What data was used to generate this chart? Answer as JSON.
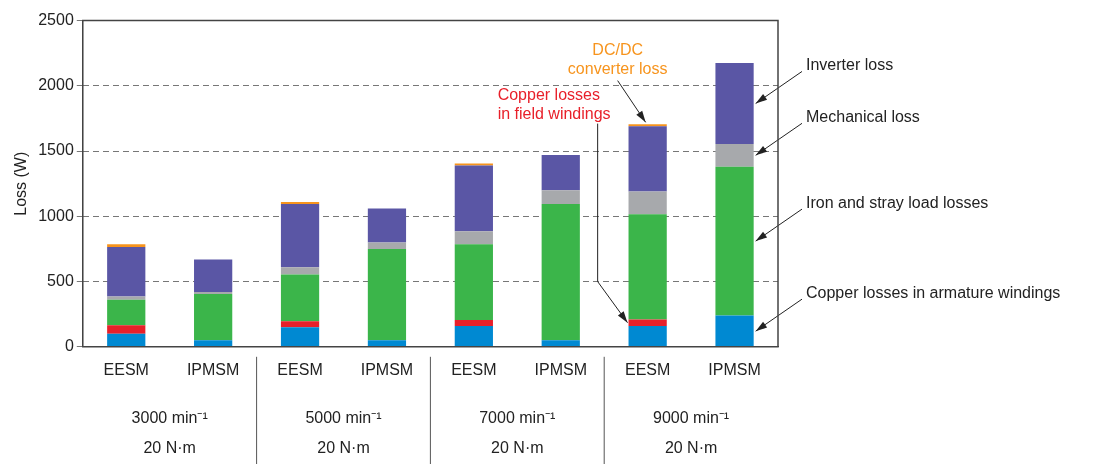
{
  "chart_data": {
    "type": "bar",
    "stacked": true,
    "ylabel": "Loss (W)",
    "categories": [
      "EESM",
      "IPMSM",
      "EESM",
      "IPMSM",
      "EESM",
      "IPMSM",
      "EESM",
      "IPMSM"
    ],
    "series": [
      {
        "name": "Copper losses in armature windings",
        "color": "#0089d2",
        "values": [
          100,
          50,
          150,
          50,
          160,
          50,
          160,
          240
        ]
      },
      {
        "name": "Copper losses\nin field windings",
        "color": "#e8202a",
        "values": [
          65,
          0,
          45,
          0,
          45,
          0,
          50,
          0
        ]
      },
      {
        "name": "Iron and stray load losses",
        "color": "#3bb54a",
        "values": [
          195,
          355,
          360,
          700,
          580,
          1045,
          805,
          1140
        ]
      },
      {
        "name": "Mechanical loss",
        "color": "#a7a9ac",
        "values": [
          25,
          15,
          55,
          50,
          100,
          105,
          175,
          175
        ]
      },
      {
        "name": "Inverter loss",
        "color": "#5a56a5",
        "values": [
          380,
          250,
          485,
          260,
          505,
          270,
          500,
          620
        ]
      },
      {
        "name": "DC/DC\nconverter loss",
        "color": "#f7941d",
        "values": [
          20,
          0,
          15,
          0,
          15,
          0,
          15,
          0
        ]
      }
    ],
    "ylim": [
      0,
      2500
    ],
    "yticks": [
      0,
      500,
      1000,
      1500,
      2000,
      2500
    ],
    "grid": "y",
    "legend": false,
    "annotations": [
      "3000 min⁻¹\n20 N·m",
      "5000 min⁻¹\n20 N·m",
      "7000 min⁻¹\n20 N·m",
      "9000 min⁻¹\n20 N·m"
    ]
  }
}
